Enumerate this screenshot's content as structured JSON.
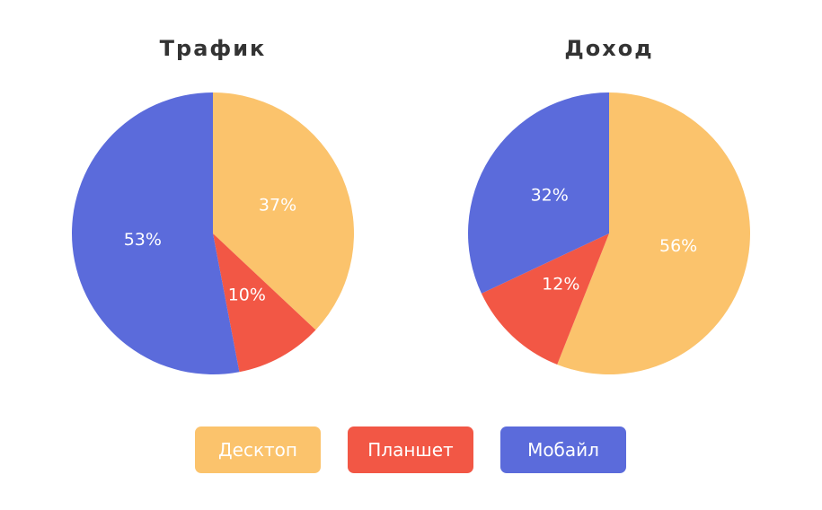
{
  "colors": {
    "Десктоп": "#FBC36C",
    "Планшет": "#F25745",
    "Мобайл": "#5B6BDB"
  },
  "chart_data": [
    {
      "type": "pie",
      "title": "Трафик",
      "categories": [
        "Десктоп",
        "Планшет",
        "Мобайл"
      ],
      "values": [
        37,
        10,
        53
      ],
      "labels": [
        "37%",
        "10%",
        "53%"
      ]
    },
    {
      "type": "pie",
      "title": "Доход",
      "categories": [
        "Десктоп",
        "Планшет",
        "Мобайл"
      ],
      "values": [
        56,
        12,
        32
      ],
      "labels": [
        "56%",
        "12%",
        "32%"
      ]
    }
  ],
  "legend": {
    "items": [
      "Десктоп",
      "Планшет",
      "Мобайл"
    ]
  }
}
